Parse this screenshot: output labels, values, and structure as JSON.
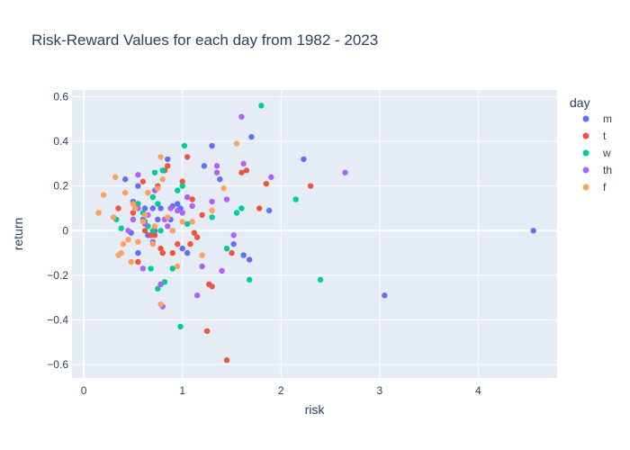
{
  "chart_data": {
    "type": "scatter",
    "title": "Risk-Reward Values for each day from 1982 - 2023",
    "xlabel": "risk",
    "ylabel": "return",
    "xlim": [
      -0.12,
      4.8
    ],
    "ylim": [
      -0.66,
      0.63
    ],
    "xticks": [
      0,
      1,
      2,
      3,
      4
    ],
    "xtick_labels": [
      "0",
      "1",
      "2",
      "3",
      "4"
    ],
    "yticks": [
      -0.6,
      -0.4,
      -0.2,
      0,
      0.2,
      0.4,
      0.6
    ],
    "ytick_labels": [
      "−0.6",
      "−0.4",
      "−0.2",
      "0",
      "0.2",
      "0.4",
      "0.6"
    ],
    "grid": true,
    "legend": {
      "title": "day",
      "position": "right"
    },
    "series": [
      {
        "name": "m",
        "color": "#636efa",
        "points": [
          [
            0.42,
            0.23
          ],
          [
            0.5,
            0.13
          ],
          [
            0.55,
            0.2
          ],
          [
            0.6,
            0.05
          ],
          [
            0.62,
            0.1
          ],
          [
            0.7,
            0.1
          ],
          [
            0.75,
            0.05
          ],
          [
            0.78,
            0.1
          ],
          [
            0.85,
            0.32
          ],
          [
            0.88,
            0.05
          ],
          [
            0.9,
            0.11
          ],
          [
            0.95,
            0.12
          ],
          [
            0.98,
            0.1
          ],
          [
            1.0,
            -0.08
          ],
          [
            1.05,
            -0.1
          ],
          [
            1.22,
            0.29
          ],
          [
            1.3,
            0.38
          ],
          [
            1.38,
            0.23
          ],
          [
            1.52,
            -0.06
          ],
          [
            1.62,
            -0.11
          ],
          [
            1.68,
            -0.13
          ],
          [
            1.7,
            0.42
          ],
          [
            1.88,
            0.09
          ],
          [
            2.23,
            0.32
          ],
          [
            3.05,
            -0.29
          ],
          [
            4.56,
            0.0
          ],
          [
            0.55,
            -0.1
          ],
          [
            0.65,
            -0.02
          ],
          [
            0.48,
            -0.01
          ],
          [
            0.72,
            0.0
          ]
        ]
      },
      {
        "name": "t",
        "color": "#ef553b",
        "points": [
          [
            0.35,
            0.1
          ],
          [
            0.5,
            0.08
          ],
          [
            0.55,
            -0.14
          ],
          [
            0.62,
            0.0
          ],
          [
            0.68,
            -0.02
          ],
          [
            0.72,
            -0.02
          ],
          [
            0.78,
            -0.08
          ],
          [
            0.8,
            -0.1
          ],
          [
            0.82,
            0.27
          ],
          [
            0.85,
            0.29
          ],
          [
            0.9,
            -0.1
          ],
          [
            0.95,
            -0.06
          ],
          [
            1.0,
            0.22
          ],
          [
            1.05,
            0.33
          ],
          [
            1.08,
            -0.06
          ],
          [
            1.1,
            0.14
          ],
          [
            1.12,
            -0.01
          ],
          [
            1.15,
            -0.03
          ],
          [
            1.2,
            0.07
          ],
          [
            1.25,
            -0.45
          ],
          [
            1.27,
            -0.24
          ],
          [
            1.3,
            -0.25
          ],
          [
            1.45,
            -0.58
          ],
          [
            1.5,
            -0.1
          ],
          [
            1.6,
            0.26
          ],
          [
            1.65,
            0.27
          ],
          [
            1.78,
            0.1
          ],
          [
            1.85,
            0.21
          ],
          [
            2.3,
            0.2
          ],
          [
            0.6,
            0.22
          ],
          [
            0.75,
            0.2
          ]
        ]
      },
      {
        "name": "w",
        "color": "#00cc96",
        "points": [
          [
            0.33,
            0.05
          ],
          [
            0.38,
            0.01
          ],
          [
            0.5,
            0.05
          ],
          [
            0.55,
            0.12
          ],
          [
            0.6,
            0.08
          ],
          [
            0.65,
            0.02
          ],
          [
            0.68,
            -0.17
          ],
          [
            0.7,
            0.0
          ],
          [
            0.72,
            0.26
          ],
          [
            0.75,
            0.12
          ],
          [
            0.75,
            -0.26
          ],
          [
            0.78,
            0.0
          ],
          [
            0.8,
            0.27
          ],
          [
            0.82,
            -0.23
          ],
          [
            0.9,
            -0.17
          ],
          [
            0.95,
            0.18
          ],
          [
            0.98,
            -0.43
          ],
          [
            1.02,
            0.38
          ],
          [
            1.05,
            0.03
          ],
          [
            1.3,
            0.06
          ],
          [
            1.45,
            -0.08
          ],
          [
            1.55,
            0.08
          ],
          [
            1.6,
            0.1
          ],
          [
            1.68,
            -0.22
          ],
          [
            1.8,
            0.56
          ],
          [
            2.15,
            0.14
          ],
          [
            2.4,
            -0.22
          ],
          [
            0.62,
            0.04
          ],
          [
            0.7,
            0.15
          ],
          [
            1.0,
            0.2
          ]
        ]
      },
      {
        "name": "th",
        "color": "#ab63fa",
        "points": [
          [
            0.45,
            0.0
          ],
          [
            0.5,
            0.05
          ],
          [
            0.55,
            0.1
          ],
          [
            0.6,
            -0.17
          ],
          [
            0.62,
            0.03
          ],
          [
            0.65,
            0.07
          ],
          [
            0.7,
            -0.05
          ],
          [
            0.72,
            0.18
          ],
          [
            0.78,
            -0.24
          ],
          [
            0.8,
            -0.34
          ],
          [
            0.82,
            0.05
          ],
          [
            0.85,
            0.02
          ],
          [
            0.88,
            0.1
          ],
          [
            0.9,
            0.0
          ],
          [
            0.95,
            0.09
          ],
          [
            1.0,
            0.08
          ],
          [
            1.05,
            0.15
          ],
          [
            1.1,
            0.11
          ],
          [
            1.15,
            -0.29
          ],
          [
            1.2,
            -0.16
          ],
          [
            1.3,
            0.13
          ],
          [
            1.35,
            0.29
          ],
          [
            1.4,
            -0.18
          ],
          [
            1.45,
            0.14
          ],
          [
            1.52,
            -0.02
          ],
          [
            1.6,
            0.51
          ],
          [
            1.62,
            0.3
          ],
          [
            1.9,
            0.24
          ],
          [
            2.65,
            0.26
          ],
          [
            0.55,
            0.25
          ],
          [
            1.35,
            0.26
          ]
        ]
      },
      {
        "name": "f",
        "color": "#ffa15a",
        "points": [
          [
            0.15,
            0.08
          ],
          [
            0.2,
            0.16
          ],
          [
            0.3,
            0.06
          ],
          [
            0.32,
            0.24
          ],
          [
            0.35,
            -0.11
          ],
          [
            0.4,
            -0.06
          ],
          [
            0.42,
            0.17
          ],
          [
            0.45,
            -0.04
          ],
          [
            0.5,
            0.12
          ],
          [
            0.52,
            0.1
          ],
          [
            0.55,
            -0.05
          ],
          [
            0.6,
            0.04
          ],
          [
            0.62,
            0.07
          ],
          [
            0.65,
            0.17
          ],
          [
            0.7,
            -0.06
          ],
          [
            0.72,
            0.02
          ],
          [
            0.75,
            0.19
          ],
          [
            0.78,
            0.33
          ],
          [
            0.78,
            -0.33
          ],
          [
            0.8,
            0.23
          ],
          [
            0.85,
            0.06
          ],
          [
            0.9,
            0.0
          ],
          [
            0.95,
            -0.16
          ],
          [
            1.0,
            0.04
          ],
          [
            1.1,
            0.04
          ],
          [
            1.2,
            -0.11
          ],
          [
            1.3,
            0.09
          ],
          [
            1.42,
            0.19
          ],
          [
            1.55,
            0.39
          ],
          [
            0.48,
            -0.14
          ],
          [
            0.38,
            -0.1
          ]
        ]
      }
    ]
  }
}
